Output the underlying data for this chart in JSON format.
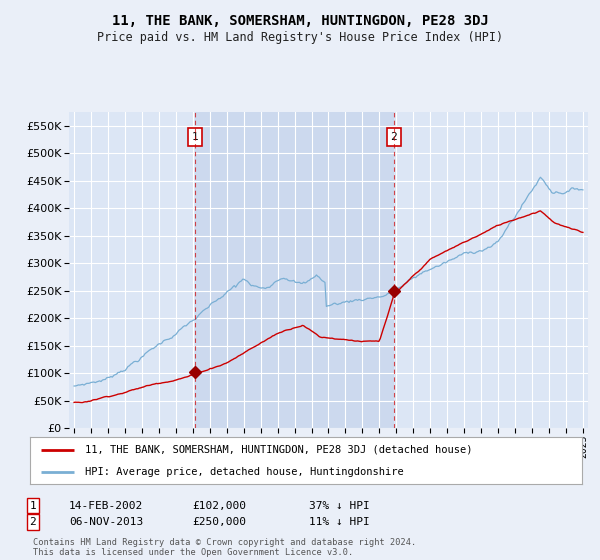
{
  "title": "11, THE BANK, SOMERSHAM, HUNTINGDON, PE28 3DJ",
  "subtitle": "Price paid vs. HM Land Registry's House Price Index (HPI)",
  "background_color": "#eaeff8",
  "plot_bg_color": "#dce6f5",
  "highlight_color": "#ccd9ee",
  "grid_color": "#ffffff",
  "legend_line1": "11, THE BANK, SOMERSHAM, HUNTINGDON, PE28 3DJ (detached house)",
  "legend_line2": "HPI: Average price, detached house, Huntingdonshire",
  "sale1_date": "14-FEB-2002",
  "sale1_price": 102000,
  "sale1_pct": "37%",
  "sale2_date": "06-NOV-2013",
  "sale2_price": 250000,
  "sale2_pct": "11%",
  "footnote": "Contains HM Land Registry data © Crown copyright and database right 2024.\nThis data is licensed under the Open Government Licence v3.0.",
  "hpi_color": "#7aafd4",
  "price_color": "#cc0000",
  "marker_color": "#990000",
  "vline_color": "#cc0000",
  "ylim": [
    0,
    575000
  ],
  "yticks": [
    0,
    50000,
    100000,
    150000,
    200000,
    250000,
    300000,
    350000,
    400000,
    450000,
    500000,
    550000
  ],
  "sale1_x": 2002.12,
  "sale2_x": 2013.85,
  "xmin": 1995.0,
  "xmax": 2025.3
}
